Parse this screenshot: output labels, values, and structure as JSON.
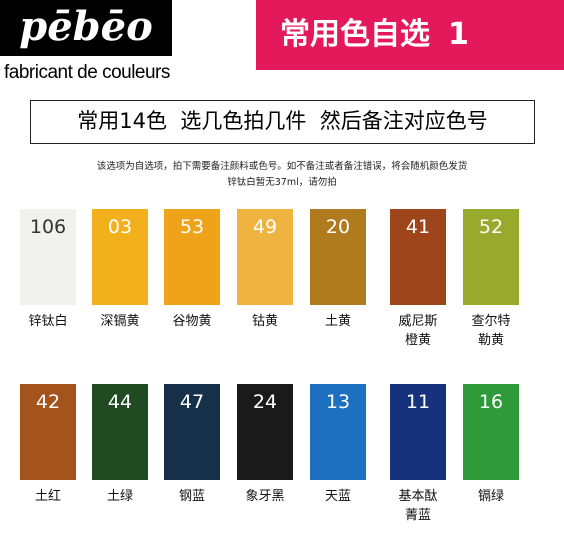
{
  "brand": {
    "logo": "pēbēo",
    "tagline": "fabricant de couleurs"
  },
  "banner": {
    "title": "常用色自选",
    "number": "1"
  },
  "heading": "常用14色  选几色拍几件  然后备注对应色号",
  "notes": [
    "该选项为自选项，拍下需要备注颜料或色号。如不备注或者备注错误，将会随机颜色发货",
    "锌钛白暂无37ml，请勿拍"
  ],
  "swatches": [
    {
      "code": "106",
      "name": [
        "锌钛白"
      ],
      "color": "#f1f1ef"
    },
    {
      "code": "03",
      "name": [
        "深镉黄"
      ],
      "color": "#f2b11c"
    },
    {
      "code": "53",
      "name": [
        "谷物黄"
      ],
      "color": "#eea31a"
    },
    {
      "code": "49",
      "name": [
        "钴黄"
      ],
      "color": "#efb43f"
    },
    {
      "code": "20",
      "name": [
        "土黄"
      ],
      "color": "#b07a1e"
    },
    {
      "code": "41",
      "name": [
        "威尼斯",
        "橙黄"
      ],
      "color": "#9e451c"
    },
    {
      "code": "52",
      "name": [
        "查尔特",
        "勒黄"
      ],
      "color": "#98aa2c"
    },
    {
      "code": "42",
      "name": [
        "土红"
      ],
      "color": "#a4531c"
    },
    {
      "code": "44",
      "name": [
        "土绿"
      ],
      "color": "#1f4a22"
    },
    {
      "code": "47",
      "name": [
        "钢蓝"
      ],
      "color": "#16304a"
    },
    {
      "code": "24",
      "name": [
        "象牙黑"
      ],
      "color": "#1a1a1a"
    },
    {
      "code": "13",
      "name": [
        "天蓝"
      ],
      "color": "#1d6fc0"
    },
    {
      "code": "11",
      "name": [
        "基本酞",
        "菁蓝"
      ],
      "color": "#17327d"
    },
    {
      "code": "16",
      "name": [
        "镉绿"
      ],
      "color": "#2e9a3a"
    }
  ]
}
